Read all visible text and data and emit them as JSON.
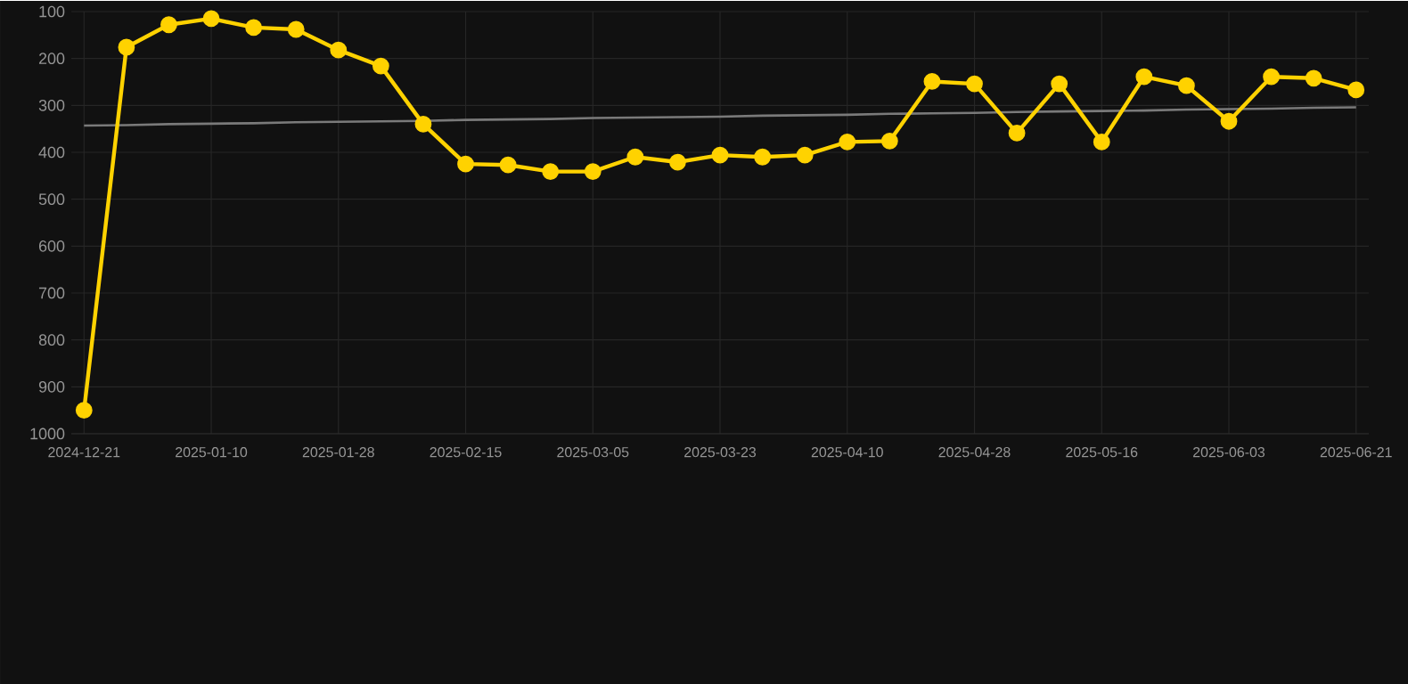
{
  "chart_data": {
    "type": "line",
    "categories": [
      "2024-12-21",
      null,
      null,
      "2025-01-10",
      null,
      null,
      "2025-01-28",
      null,
      null,
      "2025-02-15",
      null,
      null,
      "2025-03-05",
      null,
      null,
      "2025-03-23",
      null,
      null,
      "2025-04-10",
      null,
      null,
      "2025-04-28",
      null,
      null,
      "2025-05-16",
      null,
      null,
      "2025-06-03",
      null,
      null,
      "2025-06-21"
    ],
    "series": [
      {
        "color": "#ffd200",
        "values": [
          950,
          176,
          128,
          115,
          134,
          138,
          182,
          216,
          340,
          425,
          427,
          441,
          441,
          410,
          421,
          406,
          410,
          406,
          378,
          376,
          249,
          254,
          359,
          254,
          378,
          239,
          258,
          334,
          239,
          242,
          267
        ]
      },
      {
        "type": "line",
        "color": "#7a7a7a",
        "values": [
          343,
          342,
          340,
          339,
          338,
          336,
          335,
          334,
          333,
          331,
          330,
          329,
          327,
          326,
          325,
          324,
          322,
          321,
          320,
          318,
          317,
          316,
          314,
          313,
          312,
          311,
          309,
          308,
          307,
          305,
          304
        ],
        "marker": "none"
      }
    ],
    "ylim": [
      1000,
      100
    ],
    "yticks": [
      100,
      200,
      300,
      400,
      500,
      600,
      700,
      800,
      900,
      1000
    ],
    "grid": true,
    "marker": "circle",
    "line_style": "solid"
  }
}
